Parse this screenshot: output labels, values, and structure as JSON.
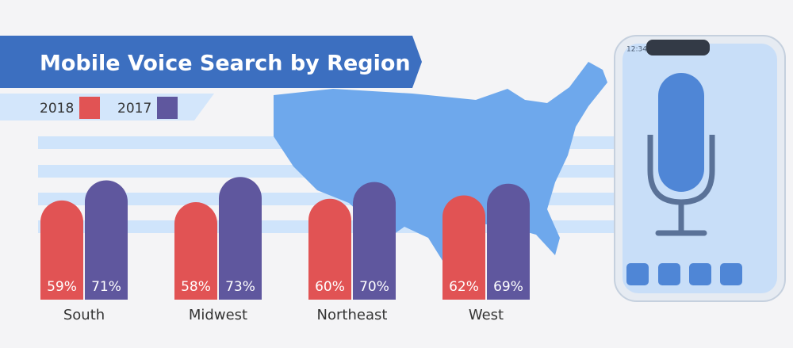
{
  "chart_data": {
    "type": "bar",
    "title": "Mobile Voice Search by Region",
    "categories": [
      "South",
      "Midwest",
      "Northeast",
      "West"
    ],
    "series": [
      {
        "name": "2018",
        "color": "#e15354",
        "values": [
          59,
          58,
          60,
          62
        ],
        "value_labels": [
          "59%",
          "58%",
          "60%",
          "62%"
        ]
      },
      {
        "name": "2017",
        "color": "#5f579e",
        "values": [
          71,
          73,
          70,
          69
        ],
        "value_labels": [
          "71%",
          "73%",
          "70%",
          "69%"
        ]
      }
    ]
  },
  "phone": {
    "time": "12:34"
  }
}
